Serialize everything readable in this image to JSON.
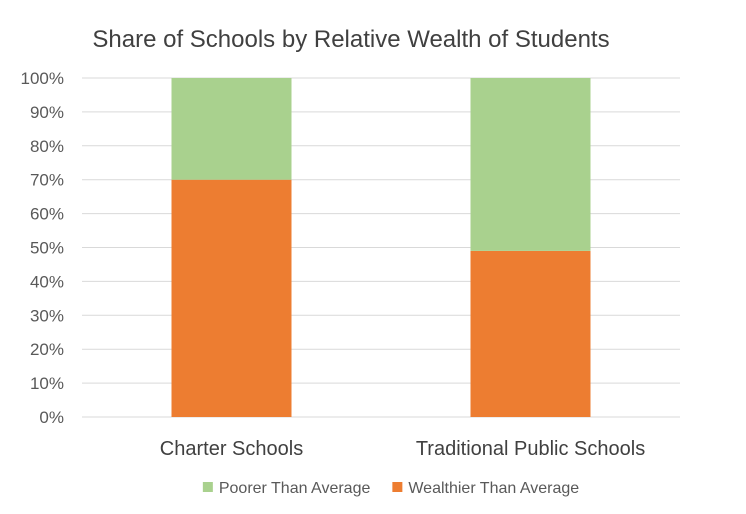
{
  "chart_data": {
    "type": "bar",
    "stacked": true,
    "title": "Share of Schools by Relative Wealth of Students",
    "categories": [
      "Charter Schools",
      "Traditional Public Schools"
    ],
    "series": [
      {
        "name": "Wealthier Than Average",
        "values": [
          70,
          49
        ],
        "color": "#ed7d31"
      },
      {
        "name": "Poorer Than Average",
        "values": [
          30,
          51
        ],
        "color": "#a9d18e"
      }
    ],
    "yticks": [
      "0%",
      "10%",
      "20%",
      "30%",
      "40%",
      "50%",
      "60%",
      "70%",
      "80%",
      "90%",
      "100%"
    ],
    "ylim": [
      0,
      100
    ],
    "grid": true,
    "legend_position": "bottom",
    "legend_order": [
      "Poorer Than Average",
      "Wealthier Than Average"
    ]
  }
}
